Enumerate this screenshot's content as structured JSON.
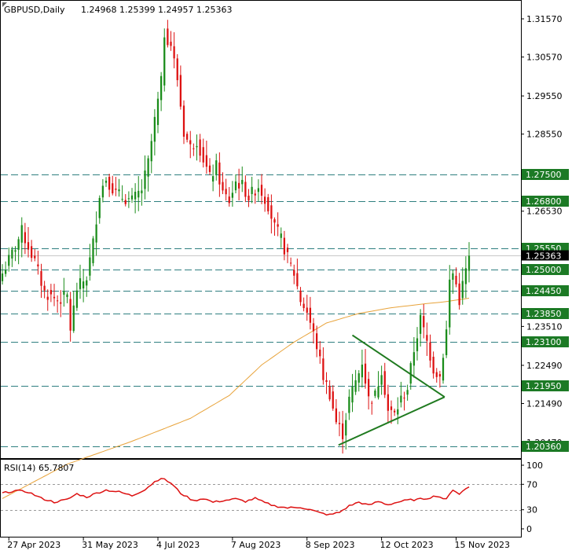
{
  "colors": {
    "background": "#ffffff",
    "frame": "#000000",
    "bull": "#1a8c1a",
    "bear": "#dd1111",
    "ma": "#e8a33a",
    "level": "#2f7f80",
    "level_box": "#1c7a25",
    "current_box": "#000000",
    "triangle": "#1f7a1f",
    "rsi": "#dd1111",
    "rsi_level": "#999999"
  },
  "chart_data": [
    {
      "type": "candlestick",
      "title": "GBPUSD,Daily",
      "ohlc_readout": "1.24968 1.25399 1.24957 1.25363",
      "ylim": [
        1.201,
        1.3172
      ],
      "price_ticks": [
        "1.31570",
        "1.30570",
        "1.29550",
        "1.28550",
        "1.26530",
        "1.23510",
        "1.22490",
        "1.21490",
        "1.20470"
      ],
      "current_price": "1.25363",
      "horizontal_levels": [
        "1.27500",
        "1.26800",
        "1.25550",
        "1.25000",
        "1.24450",
        "1.23850",
        "1.23100",
        "1.21950",
        "1.20360"
      ],
      "date_labels": [
        "27 Apr 2023",
        "31 May 2023",
        "4 Jul 2023",
        "7 Aug 2023",
        "8 Sep 2023",
        "12 Oct 2023",
        "15 Nov 2023"
      ],
      "date_label_index": [
        2,
        25,
        48,
        71,
        94,
        117,
        140
      ],
      "candle_count": 145,
      "anchors": [
        [
          0,
          1.249
        ],
        [
          4,
          1.256
        ],
        [
          6,
          1.26
        ],
        [
          10,
          1.252
        ],
        [
          13,
          1.244
        ],
        [
          17,
          1.242
        ],
        [
          20,
          1.243
        ],
        [
          21,
          1.2345
        ],
        [
          23,
          1.245
        ],
        [
          26,
          1.248
        ],
        [
          28,
          1.257
        ],
        [
          30,
          1.27
        ],
        [
          32,
          1.274
        ],
        [
          35,
          1.27
        ],
        [
          37,
          1.269
        ],
        [
          40,
          1.268
        ],
        [
          43,
          1.271
        ],
        [
          45,
          1.278
        ],
        [
          47,
          1.289
        ],
        [
          49,
          1.299
        ],
        [
          50,
          1.312
        ],
        [
          52,
          1.309
        ],
        [
          54,
          1.3
        ],
        [
          56,
          1.286
        ],
        [
          58,
          1.282
        ],
        [
          60,
          1.284
        ],
        [
          62,
          1.279
        ],
        [
          64,
          1.274
        ],
        [
          66,
          1.277
        ],
        [
          68,
          1.27
        ],
        [
          70,
          1.268
        ],
        [
          72,
          1.273
        ],
        [
          74,
          1.272
        ],
        [
          76,
          1.269
        ],
        [
          79,
          1.272
        ],
        [
          82,
          1.267
        ],
        [
          84,
          1.261
        ],
        [
          86,
          1.258
        ],
        [
          88,
          1.253
        ],
        [
          90,
          1.249
        ],
        [
          92,
          1.242
        ],
        [
          94,
          1.239
        ],
        [
          95,
          1.236
        ],
        [
          97,
          1.23
        ],
        [
          99,
          1.222
        ],
        [
          101,
          1.2175
        ],
        [
          103,
          1.21
        ],
        [
          105,
          1.207
        ],
        [
          107,
          1.216
        ],
        [
          110,
          1.223
        ],
        [
          111,
          1.226
        ],
        [
          113,
          1.216
        ],
        [
          115,
          1.217
        ],
        [
          117,
          1.224
        ],
        [
          119,
          1.213
        ],
        [
          121,
          1.212
        ],
        [
          123,
          1.216
        ],
        [
          125,
          1.219
        ],
        [
          127,
          1.229
        ],
        [
          129,
          1.237
        ],
        [
          131,
          1.231
        ],
        [
          133,
          1.224
        ],
        [
          135,
          1.222
        ],
        [
          137,
          1.234
        ],
        [
          138,
          1.247
        ],
        [
          139,
          1.249
        ],
        [
          140,
          1.246
        ],
        [
          141,
          1.242
        ],
        [
          142,
          1.246
        ],
        [
          144,
          1.2536
        ]
      ],
      "ma_anchors": [
        [
          0,
          1.19
        ],
        [
          20,
          1.199
        ],
        [
          40,
          1.205
        ],
        [
          58,
          1.211
        ],
        [
          70,
          1.217
        ],
        [
          80,
          1.225
        ],
        [
          90,
          1.231
        ],
        [
          100,
          1.236
        ],
        [
          110,
          1.2385
        ],
        [
          120,
          1.24
        ],
        [
          130,
          1.241
        ],
        [
          136,
          1.2415
        ],
        [
          144,
          1.2425
        ]
      ],
      "triangle": {
        "upper": [
          [
            1.2328,
            1.2166
          ]
        ],
        "lower": [
          [
            1.204,
            1.2166
          ]
        ],
        "anchor_index": [
          [
            108,
            135
          ],
          [
            103,
            135
          ]
        ]
      }
    },
    {
      "type": "line",
      "title": "RSI(14) 65.7807",
      "ylim": [
        0,
        100
      ],
      "y_ticks": [
        "100",
        "70",
        "30",
        "0"
      ],
      "levels": [
        70,
        30
      ],
      "rsi_anchors": [
        [
          0,
          56
        ],
        [
          4,
          60
        ],
        [
          8,
          58
        ],
        [
          12,
          48
        ],
        [
          16,
          42
        ],
        [
          20,
          46
        ],
        [
          23,
          55
        ],
        [
          26,
          50
        ],
        [
          29,
          56
        ],
        [
          32,
          61
        ],
        [
          36,
          58
        ],
        [
          40,
          52
        ],
        [
          44,
          62
        ],
        [
          47,
          74
        ],
        [
          49,
          80
        ],
        [
          52,
          72
        ],
        [
          55,
          56
        ],
        [
          59,
          44
        ],
        [
          62,
          48
        ],
        [
          65,
          42
        ],
        [
          69,
          45
        ],
        [
          72,
          47
        ],
        [
          75,
          43
        ],
        [
          78,
          48
        ],
        [
          81,
          41
        ],
        [
          84,
          36
        ],
        [
          88,
          33
        ],
        [
          92,
          34
        ],
        [
          95,
          30
        ],
        [
          98,
          25
        ],
        [
          101,
          22
        ],
        [
          104,
          26
        ],
        [
          107,
          36
        ],
        [
          110,
          42
        ],
        [
          113,
          37
        ],
        [
          116,
          43
        ],
        [
          119,
          38
        ],
        [
          122,
          42
        ],
        [
          125,
          45
        ],
        [
          128,
          46
        ],
        [
          131,
          48
        ],
        [
          134,
          52
        ],
        [
          137,
          46
        ],
        [
          139,
          62
        ],
        [
          141,
          55
        ],
        [
          143,
          63
        ],
        [
          144,
          65.78
        ]
      ]
    }
  ]
}
